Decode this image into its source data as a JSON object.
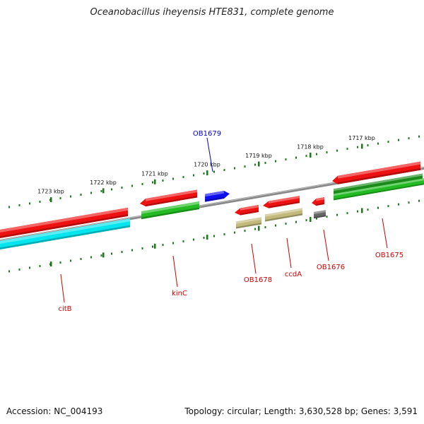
{
  "title": "Oceanobacillus iheyensis HTE831, complete genome",
  "footer": {
    "accession": "Accession: NC_004193",
    "topology": "Topology: circular; Length: 3,630,528 bp; Genes: 3,591"
  },
  "colors": {
    "backbone": "#888888",
    "forward_gene": "#ee1111",
    "reverse_gene": "#22bb22",
    "dark_reverse_gene": "#1a8a1a",
    "rna_gene": "#00e5ee",
    "olive_gene": "#c2b97a",
    "gray_gene": "#666666",
    "highlight_gene": "#1010ee",
    "tick": "#1a7a1a",
    "label_red": "#cc0000",
    "label_blue": "#0000cc"
  },
  "scale_ticks": [
    {
      "label": "1723 kbp"
    },
    {
      "label": "1722 kbp"
    },
    {
      "label": "1721 kbp"
    },
    {
      "label": "1720 kbp"
    },
    {
      "label": "1719 kbp"
    },
    {
      "label": "1718 kbp"
    },
    {
      "label": "1717 kbp"
    }
  ],
  "genes": [
    {
      "name": "citB",
      "color": "forward_gene"
    },
    {
      "name": "citB-rna",
      "color": "rna_gene"
    },
    {
      "name": "kinC-forward",
      "color": "forward_gene"
    },
    {
      "name": "kinC",
      "color": "reverse_gene"
    },
    {
      "name": "OB1679",
      "color": "highlight_gene"
    },
    {
      "name": "OB1678",
      "color": "forward_gene"
    },
    {
      "name": "OB1678-olive",
      "color": "olive_gene"
    },
    {
      "name": "ccdA",
      "color": "forward_gene"
    },
    {
      "name": "ccdA-olive",
      "color": "olive_gene"
    },
    {
      "name": "OB1676",
      "color": "forward_gene"
    },
    {
      "name": "OB1676-gray",
      "color": "gray_gene"
    },
    {
      "name": "OB1675",
      "color": "forward_gene"
    },
    {
      "name": "OB1675-dark",
      "color": "dark_reverse_gene"
    },
    {
      "name": "OB1675-green",
      "color": "reverse_gene"
    }
  ],
  "gene_labels": [
    {
      "text": "citB",
      "color": "label_red"
    },
    {
      "text": "kinC",
      "color": "label_red"
    },
    {
      "text": "OB1679",
      "color": "label_blue"
    },
    {
      "text": "OB1678",
      "color": "label_red"
    },
    {
      "text": "ccdA",
      "color": "label_red"
    },
    {
      "text": "OB1676",
      "color": "label_red"
    },
    {
      "text": "OB1675",
      "color": "label_red"
    }
  ]
}
